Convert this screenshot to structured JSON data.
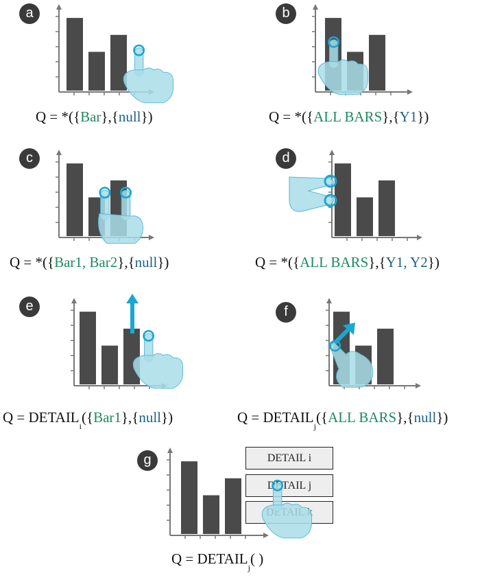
{
  "panels": [
    {
      "id": "a",
      "label": "a",
      "formula": {
        "pre": "Q = *({",
        "s1": "Bar",
        "mid": "},{",
        "s2": "null",
        "post": "})"
      }
    },
    {
      "id": "b",
      "label": "b",
      "formula": {
        "pre": "Q = *({",
        "s1": "ALL BARS",
        "mid": "},{",
        "s2": "Y1",
        "post": "})"
      }
    },
    {
      "id": "c",
      "label": "c",
      "formula": {
        "pre": "Q = *({",
        "s1": "Bar1, Bar2",
        "mid": "},{",
        "s2": "null",
        "post": "})"
      }
    },
    {
      "id": "d",
      "label": "d",
      "formula": {
        "pre": "Q = *({",
        "s1": "ALL BARS",
        "mid": "},{",
        "s2": "Y1, Y2",
        "post": "})"
      }
    },
    {
      "id": "e",
      "label": "e",
      "formula": {
        "pre": "Q = DETAIL",
        "sub": "i",
        "open": "({",
        "s1": "Bar1",
        "mid": "},{",
        "s2": "null",
        "post": "})"
      }
    },
    {
      "id": "f",
      "label": "f",
      "formula": {
        "pre": "Q = DETAIL",
        "sub": "j",
        "open": "({",
        "s1": "ALL BARS",
        "mid": "},{",
        "s2": "null",
        "post": "})"
      }
    },
    {
      "id": "g",
      "label": "g",
      "formula": {
        "pre": "Q = DETAIL",
        "sub": "j",
        "post": "( )"
      },
      "menu": [
        "DETAIL i",
        "DETAIL j",
        "DETAIL k"
      ]
    }
  ],
  "chart_data": {
    "type": "bar",
    "values": [
      3,
      1.6,
      2.3
    ],
    "ylim": [
      0,
      3.4
    ]
  },
  "colors": {
    "bar": "#4a4a4a",
    "axis": "#777777",
    "hand": "#a9dde9",
    "highlight": "#1aa7d1"
  }
}
